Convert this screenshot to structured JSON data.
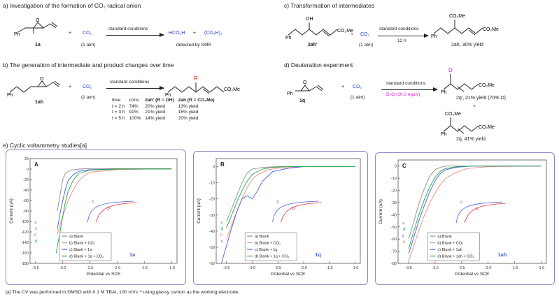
{
  "sections": {
    "a": {
      "header": "a) Investigation of the formation of CO₂ radical anion",
      "substrate": "1a",
      "plus": "+",
      "co2": "CO₂",
      "co2_pressure": "(1 atm)",
      "conditions": "standard conditions",
      "product1": "HCO₂H",
      "product2": "(CO₂H)₂",
      "note": "detected by NMR"
    },
    "b": {
      "header": "b) The generation of intermediate and product changes over time",
      "substrate": "1ah",
      "co2": "CO₂",
      "co2_pressure": "(1 atm)",
      "conditions": "standard conditions",
      "r_label": "R",
      "ester": "CO₂Me",
      "ph": "Ph",
      "table_headers": [
        "time",
        "conv.",
        "2ah' (R = OH)",
        "2ah (R = CO₂Me)"
      ],
      "table_rows": [
        [
          "t = 2 h",
          "74%",
          "20% yield",
          "13% yield"
        ],
        [
          "t = 3 h",
          "91%",
          "21% yield",
          "15% yield"
        ],
        [
          "t = 5 h",
          "100%",
          "14% yield",
          "20% yield"
        ]
      ]
    },
    "c": {
      "header": "c) Transformation of intermediates",
      "substrate": "2ah'",
      "oh": "OH",
      "ph": "Ph",
      "ester": "CO₂Me",
      "co2": "CO₂",
      "co2_pressure": "(1 atm)",
      "conditions": "standard conditions",
      "time": "12 h",
      "product": "2ah, 30% yield"
    },
    "d": {
      "header": "d) Deuteration experiment",
      "substrate": "1q",
      "co2": "CO₂",
      "co2_pressure": "(1 atm)",
      "conditions": "standard conditions",
      "reagent": "D₂O (10.0  equiv)",
      "d_label": "D",
      "ester": "CO₂Me",
      "ph": "Ph",
      "product1": "2q', 21% yield (70% D)",
      "plus": "+",
      "product2": "2q, 41% yield"
    },
    "e": {
      "header": "e) Cyclic voltammetry studies[a]"
    }
  },
  "footnote": "[a] The CV was performed in DMSO with 0.1 M TBAI, 100 mVs⁻¹ using glassy carbon as the working electrode.",
  "colors": {
    "blank": "#8c8c8c",
    "co2": "#f08a80",
    "substrate": "#4a5de0",
    "substrate_co2": "#1fa84a",
    "panel_border": "#8a87c7",
    "red_curve": "#e0303a",
    "blue_curve": "#4a5de0"
  },
  "chart_data": [
    {
      "type": "line",
      "panel": "A",
      "xlabel": "Potential vs SCE",
      "ylabel": "Current (uA)",
      "xlim": [
        -3.6,
        -0.9
      ],
      "ylim": [
        -180,
        20
      ],
      "xticks": [
        -3.5,
        -3.0,
        -2.5,
        -2.0,
        -1.5,
        -1.0
      ],
      "yticks": [
        20,
        0,
        -20,
        -40,
        -60,
        -80,
        -100,
        -120,
        -140,
        -160,
        -180
      ],
      "legend": [
        "a) Blank",
        "b) Blank + CO₂",
        "c) Blank + 1a",
        "d) Blank + 1a + CO₂"
      ],
      "curve_labels": [
        "a",
        "b",
        "c",
        "d"
      ],
      "inset_labels": [
        "c",
        "b"
      ],
      "compound": "1a",
      "series": [
        {
          "name": "a) Blank",
          "x": [
            -3.1,
            -3.05,
            -3.0,
            -2.95,
            -2.85,
            -2.7,
            -2.5,
            -2.0,
            -1.5,
            -1.0
          ],
          "y": [
            -80,
            -50,
            -20,
            -8,
            -2,
            0,
            1,
            1,
            1,
            1
          ]
        },
        {
          "name": "b) Blank + CO₂",
          "x": [
            -3.1,
            -3.0,
            -2.9,
            -2.8,
            -2.7,
            -2.6,
            -2.5,
            -2.0,
            -1.5,
            -1.0
          ],
          "y": [
            -125,
            -90,
            -60,
            -38,
            -22,
            -12,
            -6,
            -1,
            0,
            0
          ]
        },
        {
          "name": "c) Blank + 1a",
          "x": [
            -3.1,
            -3.05,
            -3.0,
            -2.95,
            -2.9,
            -2.8,
            -2.7,
            -2.5,
            -2.0,
            -1.0
          ],
          "y": [
            -115,
            -85,
            -60,
            -38,
            -22,
            -10,
            -4,
            -1,
            0,
            0
          ]
        },
        {
          "name": "d) Blank + 1a + CO₂",
          "x": [
            -3.12,
            -3.05,
            -3.0,
            -2.95,
            -2.9,
            -2.8,
            -2.7,
            -2.5,
            -2.0,
            -1.0
          ],
          "y": [
            -160,
            -120,
            -90,
            -62,
            -42,
            -20,
            -8,
            -2,
            0,
            0
          ]
        }
      ]
    },
    {
      "type": "line",
      "panel": "B",
      "xlabel": "Potential vs SCE",
      "ylabel": "Current (uA)",
      "xlim": [
        -3.7,
        -0.9
      ],
      "ylim": [
        -60,
        5
      ],
      "xticks": [
        -3.5,
        -3.0,
        -2.5,
        -2.0,
        -1.5,
        -1.0
      ],
      "yticks": [
        0,
        -10,
        -20,
        -30,
        -40,
        -50,
        -60
      ],
      "legend": [
        "a) Blank",
        "b) Blank + CO₂",
        "c) Blank + 1q",
        "d) Blank + 1q + CO₂"
      ],
      "curve_labels": [
        "a",
        "d",
        "b",
        "c"
      ],
      "inset_labels": [
        "c",
        "b"
      ],
      "compound": "1q",
      "series": [
        {
          "name": "a) Blank",
          "x": [
            -3.5,
            -3.4,
            -3.3,
            -3.2,
            -3.1,
            -3.0,
            -2.8,
            -2.5,
            -2.0,
            -1.0
          ],
          "y": [
            -34,
            -26,
            -18,
            -10,
            -4,
            -1.5,
            -0.5,
            0,
            0,
            0
          ]
        },
        {
          "name": "b) Blank + CO₂",
          "x": [
            -3.5,
            -3.4,
            -3.3,
            -3.2,
            -3.1,
            -3.0,
            -2.9,
            -2.7,
            -2.5,
            -2.0,
            -1.0
          ],
          "y": [
            -45,
            -36,
            -28,
            -20,
            -13,
            -8,
            -5,
            -2,
            -1,
            0,
            0
          ]
        },
        {
          "name": "c) Blank + 1q",
          "x": [
            -3.6,
            -3.5,
            -3.4,
            -3.3,
            -3.2,
            -3.1,
            -3.0,
            -2.9,
            -2.8,
            -2.6,
            -2.3,
            -2.0,
            -1.0
          ],
          "y": [
            -60,
            -49,
            -38,
            -28,
            -20,
            -18,
            -20,
            -15,
            -9,
            -3,
            -1,
            0,
            0
          ]
        },
        {
          "name": "d) Blank + 1q + CO₂",
          "x": [
            -3.5,
            -3.4,
            -3.3,
            -3.2,
            -3.1,
            -3.0,
            -2.9,
            -2.8,
            -2.6,
            -2.3,
            -2.0,
            -1.0
          ],
          "y": [
            -38,
            -30,
            -22,
            -15,
            -9,
            -5,
            -3,
            -1.5,
            -0.5,
            0,
            0,
            0
          ]
        }
      ]
    },
    {
      "type": "line",
      "panel": "C",
      "xlabel": "Potential vs SCE",
      "ylabel": "Current (uA)",
      "xlim": [
        -3.7,
        -0.9
      ],
      "ylim": [
        -80,
        5
      ],
      "xticks": [
        -3.5,
        -3.0,
        -2.5,
        -2.0,
        -1.5,
        -1.0
      ],
      "yticks": [
        0,
        -10,
        -20,
        -30,
        -40,
        -50,
        -60,
        -70,
        -80
      ],
      "legend": [
        "a) Blank",
        "b) Blank + CO₂",
        "c) Blank + 1ah",
        "d) Blank + 1ah + CO₂"
      ],
      "curve_labels": [
        "a",
        "d",
        "c",
        "b"
      ],
      "inset_labels": [
        "c",
        "b"
      ],
      "compound": "1ah",
      "series": [
        {
          "name": "a) Blank",
          "x": [
            -3.5,
            -3.4,
            -3.3,
            -3.2,
            -3.1,
            -3.0,
            -2.9,
            -2.8,
            -2.5,
            -2.0,
            -1.0
          ],
          "y": [
            -60,
            -45,
            -30,
            -18,
            -8,
            -3,
            -1,
            0,
            0,
            0,
            0
          ]
        },
        {
          "name": "b) Blank + CO₂",
          "x": [
            -3.5,
            -3.4,
            -3.3,
            -3.2,
            -3.1,
            -3.0,
            -2.9,
            -2.8,
            -2.6,
            -2.4,
            -2.0,
            -1.0
          ],
          "y": [
            -78,
            -65,
            -52,
            -40,
            -30,
            -22,
            -15,
            -10,
            -5,
            -2,
            -0.5,
            0
          ]
        },
        {
          "name": "c) Blank + 1ah",
          "x": [
            -3.5,
            -3.4,
            -3.3,
            -3.2,
            -3.1,
            -3.0,
            -2.9,
            -2.8,
            -2.6,
            -2.3,
            -2.0,
            -1.0
          ],
          "y": [
            -72,
            -58,
            -44,
            -32,
            -21,
            -12,
            -6,
            -3,
            -1,
            0,
            0,
            0
          ]
        },
        {
          "name": "d) Blank + 1ah + CO₂",
          "x": [
            -3.5,
            -3.4,
            -3.3,
            -3.2,
            -3.1,
            -3.0,
            -2.9,
            -2.8,
            -2.6,
            -2.3,
            -2.0,
            -1.0
          ],
          "y": [
            -68,
            -53,
            -39,
            -27,
            -17,
            -9,
            -4,
            -2,
            -0.5,
            0,
            0,
            0
          ]
        }
      ]
    }
  ]
}
